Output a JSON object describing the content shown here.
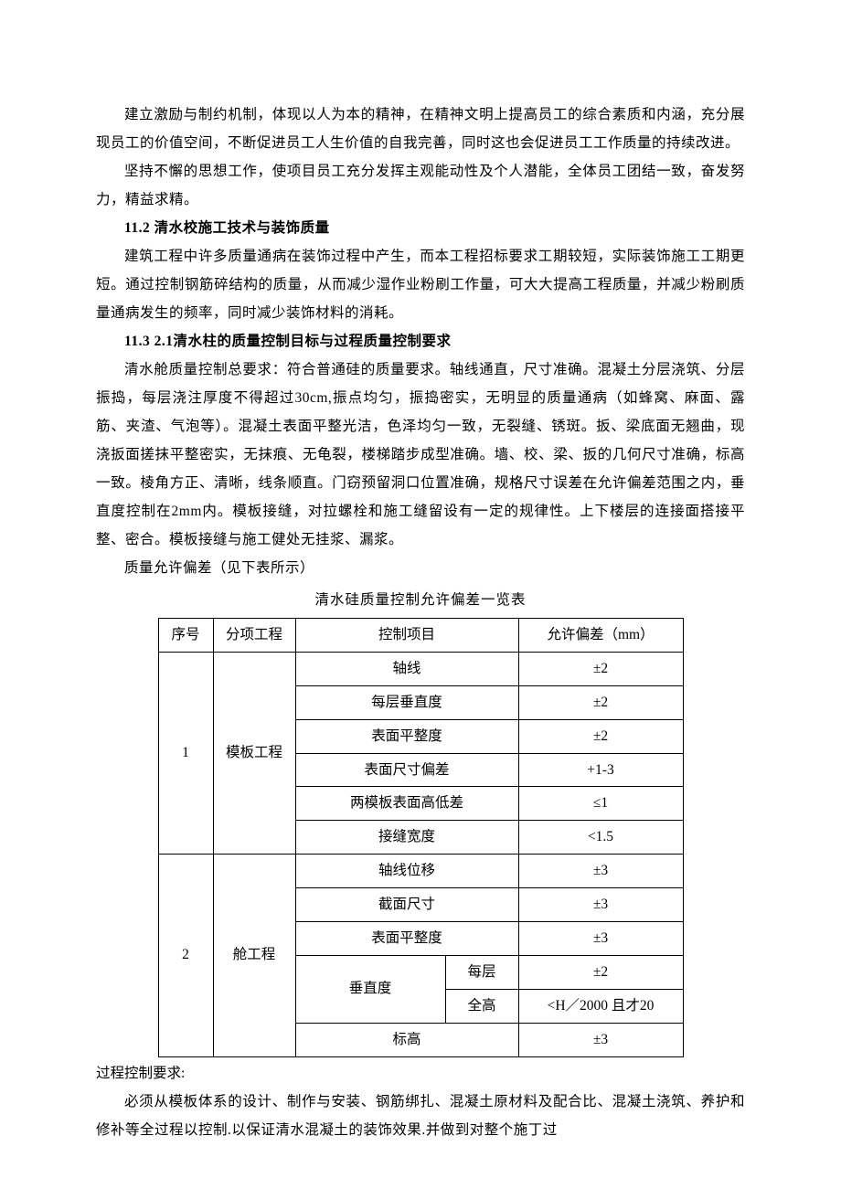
{
  "paras": {
    "p1": "建立激励与制约机制，体现以人为本的精神，在精神文明上提高员工的综合素质和内涵，充分展现员工的价值空间，不断促进员工人生价值的自我完善，同时这也会促进员工工作质量的持续改进。",
    "p2": "坚持不懈的思想工作，使项目员工充分发挥主观能动性及个人潜能，全体员工团结一致，奋发努力，精益求精。",
    "h1": "11.2 清水校施工技术与装饰质量",
    "p3": "建筑工程中许多质量通病在装饰过程中产生，而本工程招标要求工期较短，实际装饰施工工期更短。通过控制钢筋碎结构的质量，从而减少湿作业粉刷工作量，可大大提高工程质量，并减少粉刷质量通病发生的频率，同时减少装饰材料的消耗。",
    "h2": "11.3 2.1清水柱的质量控制目标与过程质量控制要求",
    "p4": "清水舱质量控制总要求：符合普通硅的质量要求。轴线通直，尺寸准确。混凝土分层浇筑、分层振捣，每层浇注厚度不得超过30cm,振点均匀，振捣密实，无明显的质量通病（如蜂窝、麻面、露筋、夹渣、气泡等）。混凝土表面平整光洁，色泽均匀一致，无裂缝、锈斑。扳、梁底面无翘曲，现浇扳面搓抹平整密实，无抹痕、无龟裂，楼梯踏步成型准确。墙、校、梁、扳的几何尺寸准确，标高一致。棱角方正、清晰，线条顺直。门窃预留洞口位置准确，规格尺寸误差在允许偏差范围之内，垂直度控制在2mm内。模板接缝，对拉螺栓和施工缝留设有一定的规律性。上下楼层的连接面搭接平整、密合。模板接缝与施工健处无挂浆、漏浆。",
    "p5": "质量允许偏差（见下表所示）",
    "caption": "清水硅质量控制允许偏差一览表",
    "after1": "过程控制要求:",
    "after2": "必须从模板体系的设计、制作与安装、钢筋绑扎、混凝土原材料及配合比、混凝土浇筑、养护和修补等全过程以控制.以保证清水混凝土的装饰效果.并做到对整个施丁过"
  },
  "table": {
    "headers": {
      "seq": "序号",
      "proj": "分项工程",
      "ctrl": "控制项目",
      "tol": "允许偏差（mm）"
    },
    "g1": {
      "seq": "1",
      "proj": "模板工程",
      "r1c": "轴线",
      "r1t": "±2",
      "r2c": "每层垂直度",
      "r2t": "±2",
      "r3c": "表面平整度",
      "r3t": "±2",
      "r4c": "表面尺寸偏差",
      "r4t": "+1-3",
      "r5c": "两模板表面高低差",
      "r5t": "≤1",
      "r6c": "接缝宽度",
      "r6t": "<1.5"
    },
    "g2": {
      "seq": "2",
      "proj": "舱工程",
      "r1c": "轴线位移",
      "r1t": "±3",
      "r2c": "截面尺寸",
      "r2t": "±3",
      "r3c": "表面平整度",
      "r3t": "±3",
      "r4c": "垂直度",
      "r4s1": "每层",
      "r4t1": "±2",
      "r4s2": "全高",
      "r4t2": "<H／2000 且才20",
      "r5c": "标高",
      "r5t": "±3"
    }
  }
}
